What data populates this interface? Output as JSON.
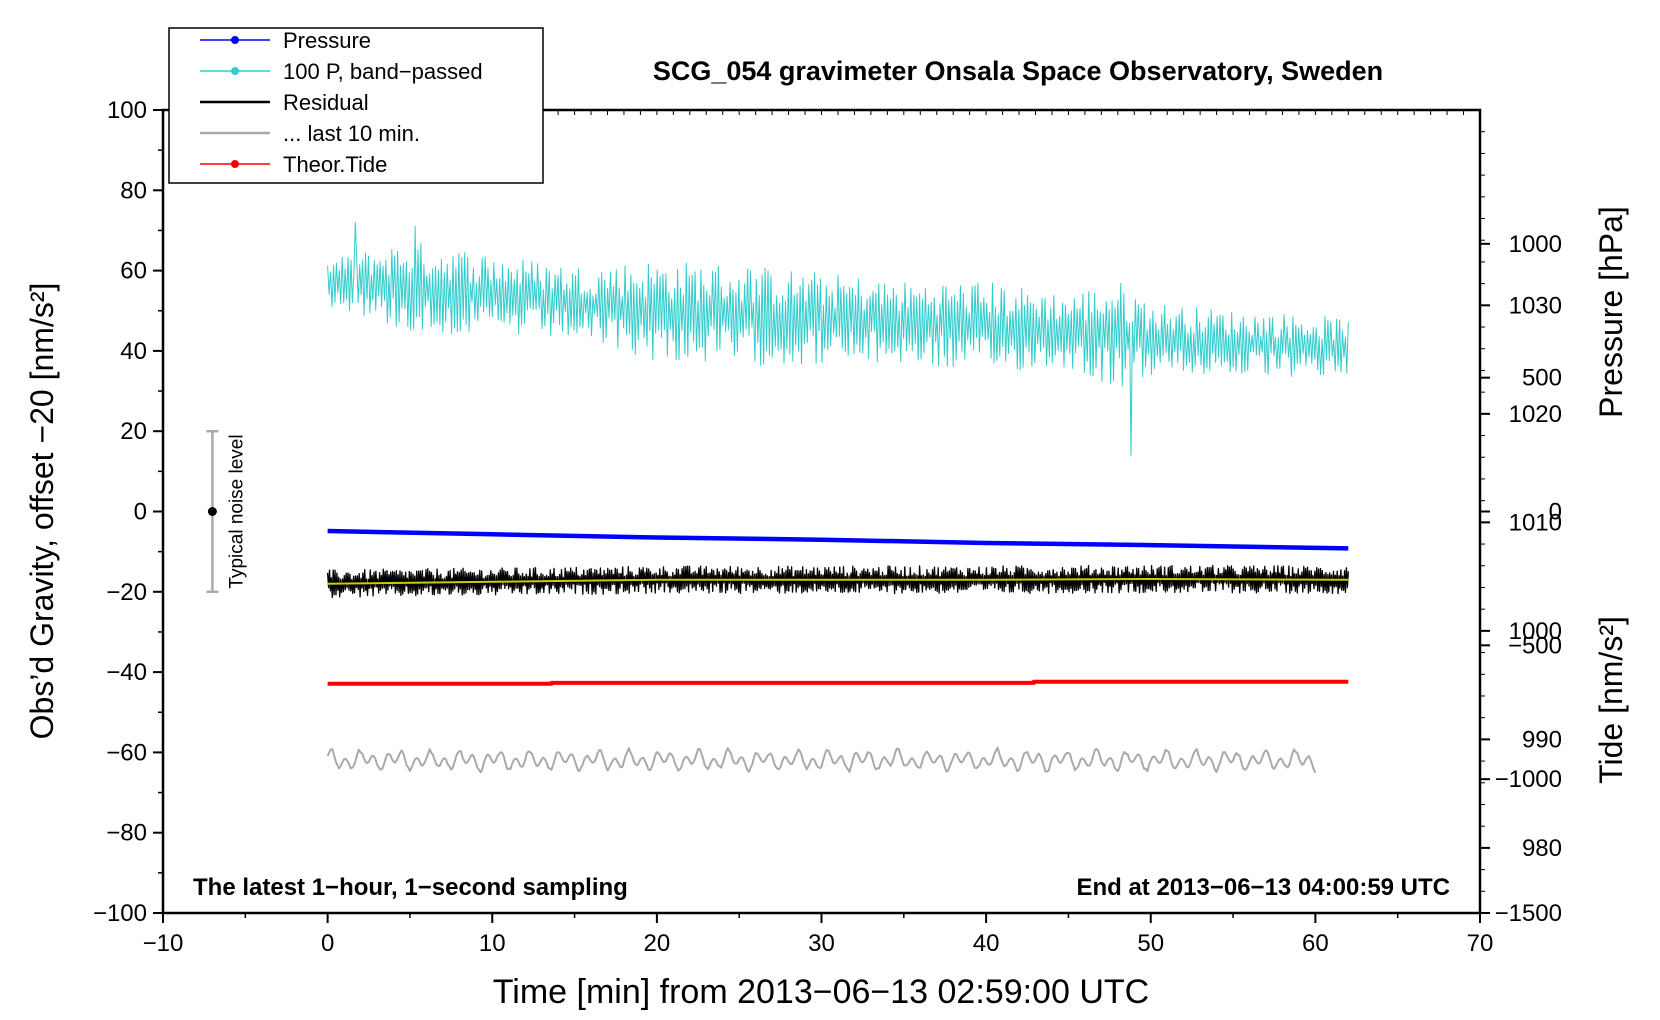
{
  "chart_data": {
    "type": "line",
    "title": "SCG_054 gravimeter Onsala Space Observatory, Sweden",
    "xlabel": "Time [min] from 2013−06−13 02:59:00 UTC",
    "ylabel_left": "Obs’d Gravity, offset −20 [nm/s²]",
    "ylabel_right_top": "Pressure [hPa]",
    "ylabel_right_bottom": "Tide [nm/s²]",
    "xlim": [
      -10,
      70
    ],
    "ylim": [
      -100,
      100
    ],
    "pressure_lim": [
      974,
      1048
    ],
    "tide_lim": [
      -1500,
      1500
    ],
    "x_ticks": [
      -10,
      0,
      10,
      20,
      30,
      40,
      50,
      60,
      70
    ],
    "x_tick_labels": [
      "−10",
      "0",
      "10",
      "20",
      "30",
      "40",
      "50",
      "60",
      "70"
    ],
    "y_ticks": [
      -100,
      -80,
      -60,
      -40,
      -20,
      0,
      20,
      40,
      60,
      80,
      100
    ],
    "y_tick_labels": [
      "−100",
      "−80",
      "−60",
      "−40",
      "−20",
      "0",
      "20",
      "40",
      "60",
      "80",
      "100"
    ],
    "pressure_ticks": [
      980,
      990,
      1000,
      1010,
      1020,
      1030
    ],
    "pressure_tick_labels": [
      "980",
      "990",
      "1000",
      "1010",
      "1020",
      "1030"
    ],
    "tide_ticks": [
      -1500,
      -1000,
      -500,
      0,
      500,
      1000
    ],
    "tide_tick_labels": [
      "−1500",
      "−1000",
      "−500",
      "0",
      "500",
      "1000"
    ],
    "legend": {
      "position": "top-left",
      "entries": [
        {
          "label": "Pressure",
          "color": "#0000ff",
          "marker": true
        },
        {
          "label": "100 P, band−passed",
          "color": "#33cccc",
          "marker": true
        },
        {
          "label": "Residual",
          "color": "#000000",
          "marker": false
        },
        {
          "label": "... last 10 min.",
          "color": "#aaaaaa",
          "marker": false
        },
        {
          "label": "Theor.Tide",
          "color": "#ff0000",
          "marker": true
        }
      ]
    },
    "annotations": {
      "bottom_left": "The latest 1−hour, 1−second sampling",
      "bottom_right": "End at 2013−06−13 04:00:59 UTC",
      "noise_label": "Typical noise level"
    },
    "noise_bar": {
      "x": -7,
      "center": 0,
      "low": -20,
      "high": 20
    },
    "series": [
      {
        "name": "Pressure",
        "axis": "pressure",
        "color": "#0000ff",
        "x": [
          0,
          10,
          20,
          30,
          40,
          50,
          62
        ],
        "y": [
          1009.2,
          1008.9,
          1008.6,
          1008.4,
          1008.1,
          1007.9,
          1007.6
        ]
      },
      {
        "name": "100 P, band-passed",
        "axis": "gravity",
        "color": "#33cccc",
        "style": "noise",
        "x": [
          0,
          5,
          10,
          15,
          20,
          25,
          30,
          35,
          40,
          45,
          48,
          50,
          55,
          60,
          62
        ],
        "y": [
          57,
          56,
          54,
          52,
          50,
          49,
          48,
          47,
          46,
          45,
          44,
          43,
          42,
          41,
          41
        ],
        "amplitude": [
          5,
          10,
          9,
          8,
          11,
          11,
          10,
          9,
          10,
          8,
          12,
          8,
          7,
          7,
          6
        ],
        "spikes": [
          {
            "x": 48.8,
            "y": 14
          },
          {
            "x": 1.7,
            "y": 72
          },
          {
            "x": 5.3,
            "y": 71
          }
        ]
      },
      {
        "name": "Residual",
        "axis": "gravity",
        "color": "#000000",
        "style": "noise",
        "x": [
          0,
          10,
          20,
          30,
          40,
          50,
          62
        ],
        "y": [
          -18,
          -17.5,
          -17,
          -17,
          -17,
          -16.8,
          -17
        ],
        "amplitude": [
          3,
          3,
          3,
          3,
          3,
          3,
          3
        ]
      },
      {
        "name": "Residual smoothed",
        "axis": "gravity",
        "color": "#cccc00",
        "x": [
          0,
          10,
          20,
          30,
          40,
          50,
          62
        ],
        "y": [
          -18,
          -17.5,
          -17,
          -17,
          -17,
          -16.8,
          -17
        ]
      },
      {
        "name": "... last 10 min.",
        "axis": "gravity",
        "color": "#aaaaaa",
        "style": "oscillation",
        "x_start": 0,
        "x_end": 60,
        "center": -62,
        "amplitude": 2.5
      },
      {
        "name": "Theor.Tide",
        "axis": "gravity",
        "color": "#ff0000",
        "x": [
          0,
          13.6,
          13.6,
          42.9,
          42.9,
          62
        ],
        "y": [
          -42.9,
          -42.9,
          -42.7,
          -42.7,
          -42.4,
          -42.4
        ]
      }
    ]
  }
}
